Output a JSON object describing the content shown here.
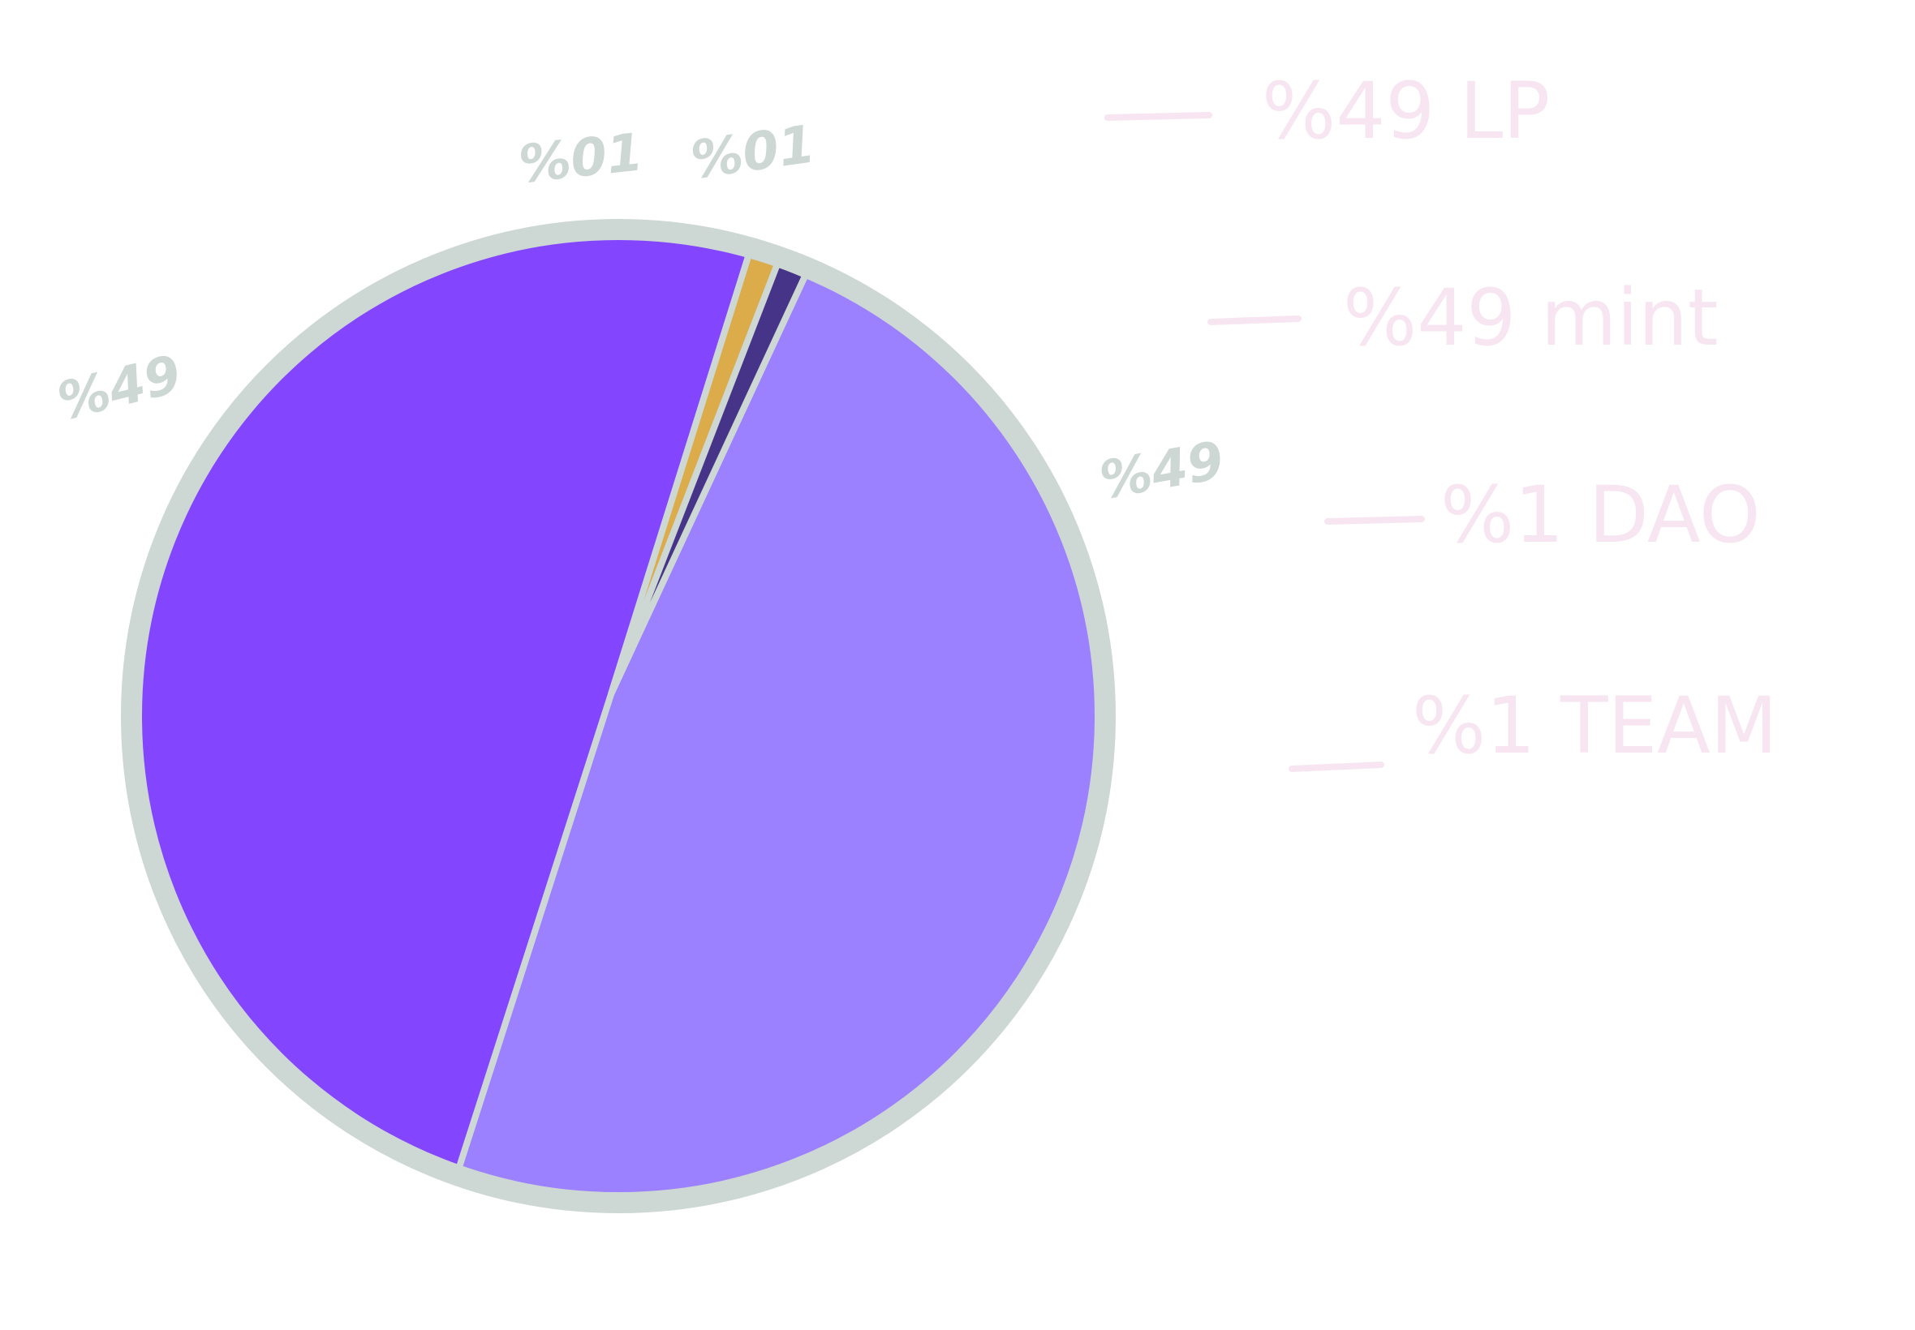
{
  "chart_data": {
    "type": "pie",
    "slices": [
      {
        "label": "LP",
        "value": 49,
        "display": "%49",
        "color": "#9b80ff"
      },
      {
        "label": "mint",
        "value": 49,
        "display": "%49",
        "color": "#8445ff"
      },
      {
        "label": "DAO",
        "value": 1,
        "display": "%01",
        "color": "#dcab4a"
      },
      {
        "label": "TEAM",
        "value": 1,
        "display": "%01",
        "color": "#463488"
      }
    ],
    "legend": [
      {
        "text": "%49 LP"
      },
      {
        "text": "%49 mint"
      },
      {
        "text": "%1 DAO"
      },
      {
        "text": "%1 TEAM"
      }
    ],
    "legend_placement": "right",
    "colors": {
      "border": "#cdd7d3",
      "legend_text": "#f7e6f1",
      "pct_text": "#cdd7d3"
    }
  }
}
